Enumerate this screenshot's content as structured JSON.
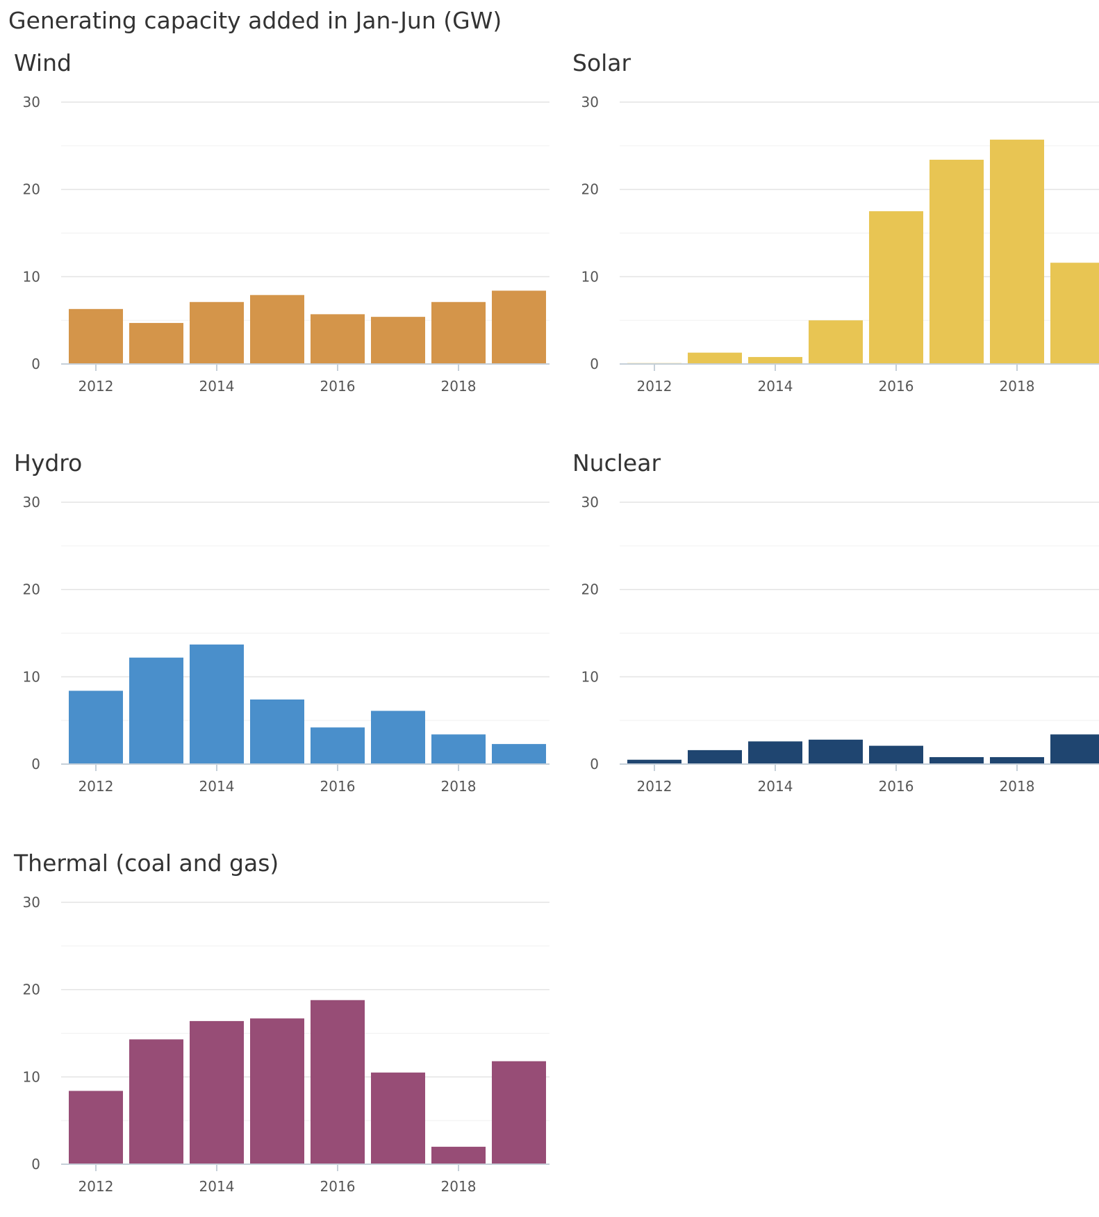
{
  "title": "Generating capacity added in Jan-Jun (GW)",
  "chart_data": [
    {
      "type": "bar",
      "title": "Wind",
      "categories": [
        2012,
        2013,
        2014,
        2015,
        2016,
        2017,
        2018,
        2019
      ],
      "values": [
        6.3,
        4.7,
        7.1,
        7.9,
        5.7,
        5.4,
        7.1,
        8.4
      ],
      "ylim": [
        0,
        30
      ],
      "yticks": [
        0,
        10,
        20,
        30
      ],
      "xticks": [
        2012,
        2014,
        2016,
        2018
      ],
      "color": "#D4954A",
      "grid": true
    },
    {
      "type": "bar",
      "title": "Solar",
      "categories": [
        2012,
        2013,
        2014,
        2015,
        2016,
        2017,
        2018,
        2019
      ],
      "values": [
        0.1,
        1.3,
        0.8,
        5.0,
        17.5,
        23.4,
        25.7,
        11.6
      ],
      "ylim": [
        0,
        30
      ],
      "yticks": [
        0,
        10,
        20,
        30
      ],
      "xticks": [
        2012,
        2014,
        2016,
        2018
      ],
      "color": "#E8C553",
      "grid": true
    },
    {
      "type": "bar",
      "title": "Hydro",
      "categories": [
        2012,
        2013,
        2014,
        2015,
        2016,
        2017,
        2018,
        2019
      ],
      "values": [
        8.4,
        12.2,
        13.7,
        7.4,
        4.2,
        6.1,
        3.4,
        2.3
      ],
      "ylim": [
        0,
        30
      ],
      "yticks": [
        0,
        10,
        20,
        30
      ],
      "xticks": [
        2012,
        2014,
        2016,
        2018
      ],
      "color": "#4A8FCB",
      "grid": true
    },
    {
      "type": "bar",
      "title": "Nuclear",
      "categories": [
        2012,
        2013,
        2014,
        2015,
        2016,
        2017,
        2018,
        2019
      ],
      "values": [
        0.5,
        1.6,
        2.6,
        2.8,
        2.1,
        0.8,
        0.8,
        3.4
      ],
      "ylim": [
        0,
        30
      ],
      "yticks": [
        0,
        10,
        20,
        30
      ],
      "xticks": [
        2012,
        2014,
        2016,
        2018
      ],
      "color": "#1F4570",
      "grid": true
    },
    {
      "type": "bar",
      "title": "Thermal (coal and gas)",
      "categories": [
        2012,
        2013,
        2014,
        2015,
        2016,
        2017,
        2018,
        2019
      ],
      "values": [
        8.4,
        14.3,
        16.4,
        16.7,
        18.8,
        10.5,
        2.0,
        11.8
      ],
      "ylim": [
        0,
        30
      ],
      "yticks": [
        0,
        10,
        20,
        30
      ],
      "xticks": [
        2012,
        2014,
        2016,
        2018
      ],
      "color": "#974D76",
      "grid": true
    }
  ]
}
